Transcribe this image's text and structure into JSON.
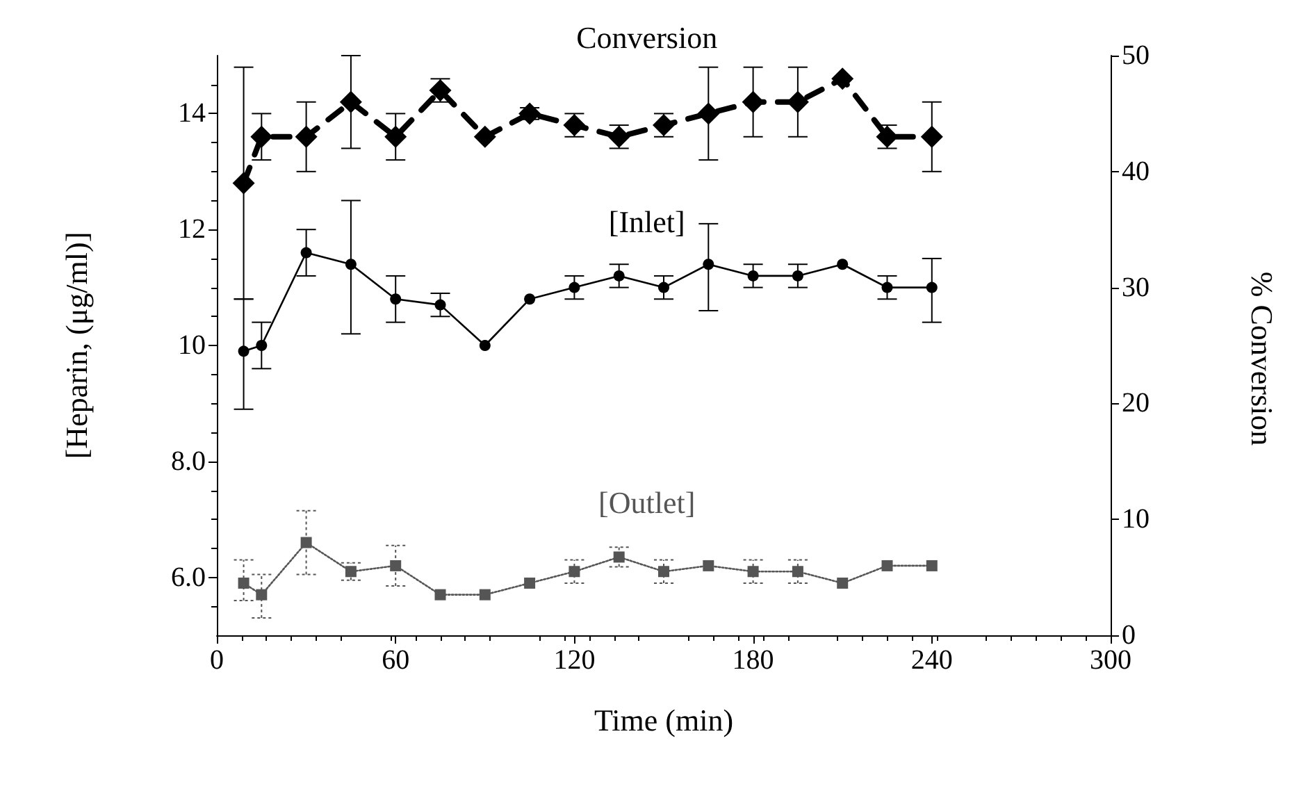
{
  "chart_data": {
    "type": "line",
    "xlabel": "Time (min)",
    "ylabel": "[Heparin, (μg/ml)]",
    "y2label": "% Conversion",
    "x": [
      9,
      15,
      30,
      45,
      60,
      75,
      90,
      105,
      120,
      135,
      150,
      165,
      180,
      195,
      210,
      225,
      240
    ],
    "xlim": [
      0,
      300
    ],
    "xticks": [
      0,
      60,
      120,
      180,
      240,
      300
    ],
    "ylim": [
      5,
      15
    ],
    "yticks": [
      {
        "value": 6,
        "label": "6.0"
      },
      {
        "value": 8,
        "label": "8.0"
      },
      10,
      12,
      14
    ],
    "y2lim": [
      0,
      50
    ],
    "y2ticks": [
      0,
      10,
      20,
      30,
      40,
      50
    ],
    "grid": false,
    "legend": false,
    "series": [
      {
        "name": "Conversion",
        "color": "#000000",
        "axis": "y2",
        "marker": "diamond",
        "line_style": "dashed",
        "values": [
          39,
          43,
          43,
          46,
          43,
          47,
          43,
          45,
          44,
          43,
          44,
          45,
          46,
          46,
          48,
          43,
          43
        ],
        "errors": [
          [
            29,
            49
          ],
          2,
          3,
          4,
          2,
          1,
          null,
          0.5,
          1,
          1,
          1,
          4,
          3,
          3,
          null,
          1,
          3
        ]
      },
      {
        "name": "[Inlet]",
        "color": "#000000",
        "marker": "circle",
        "line_style": "solid",
        "values": [
          9.9,
          10,
          11.6,
          11.4,
          10.8,
          10.7,
          10,
          10.8,
          11,
          11.2,
          11,
          11.4,
          11.2,
          11.2,
          11.4,
          11,
          11
        ],
        "errors": [
          [
            8.9,
            10.8
          ],
          0.4,
          0.4,
          [
            10.2,
            12.5
          ],
          0.4,
          0.2,
          null,
          null,
          0.2,
          0.2,
          0.2,
          [
            10.6,
            12.1
          ],
          0.2,
          0.2,
          null,
          0.2,
          [
            10.4,
            11.5
          ]
        ]
      },
      {
        "name": "[Outlet]",
        "color": "#555555",
        "marker": "square",
        "line_style": "dotted",
        "values": [
          5.9,
          5.7,
          6.6,
          6.1,
          6.2,
          5.7,
          5.7,
          5.9,
          6.1,
          6.35,
          6.1,
          6.2,
          6.1,
          6.1,
          5.9,
          6.2,
          6.2
        ],
        "errors": [
          [
            5.6,
            6.3
          ],
          [
            5.3,
            6.05
          ],
          [
            6.05,
            7.15
          ],
          0.15,
          0.35,
          null,
          null,
          null,
          0.2,
          0.17,
          0.2,
          null,
          0.2,
          0.2,
          null,
          null,
          null
        ]
      }
    ]
  }
}
